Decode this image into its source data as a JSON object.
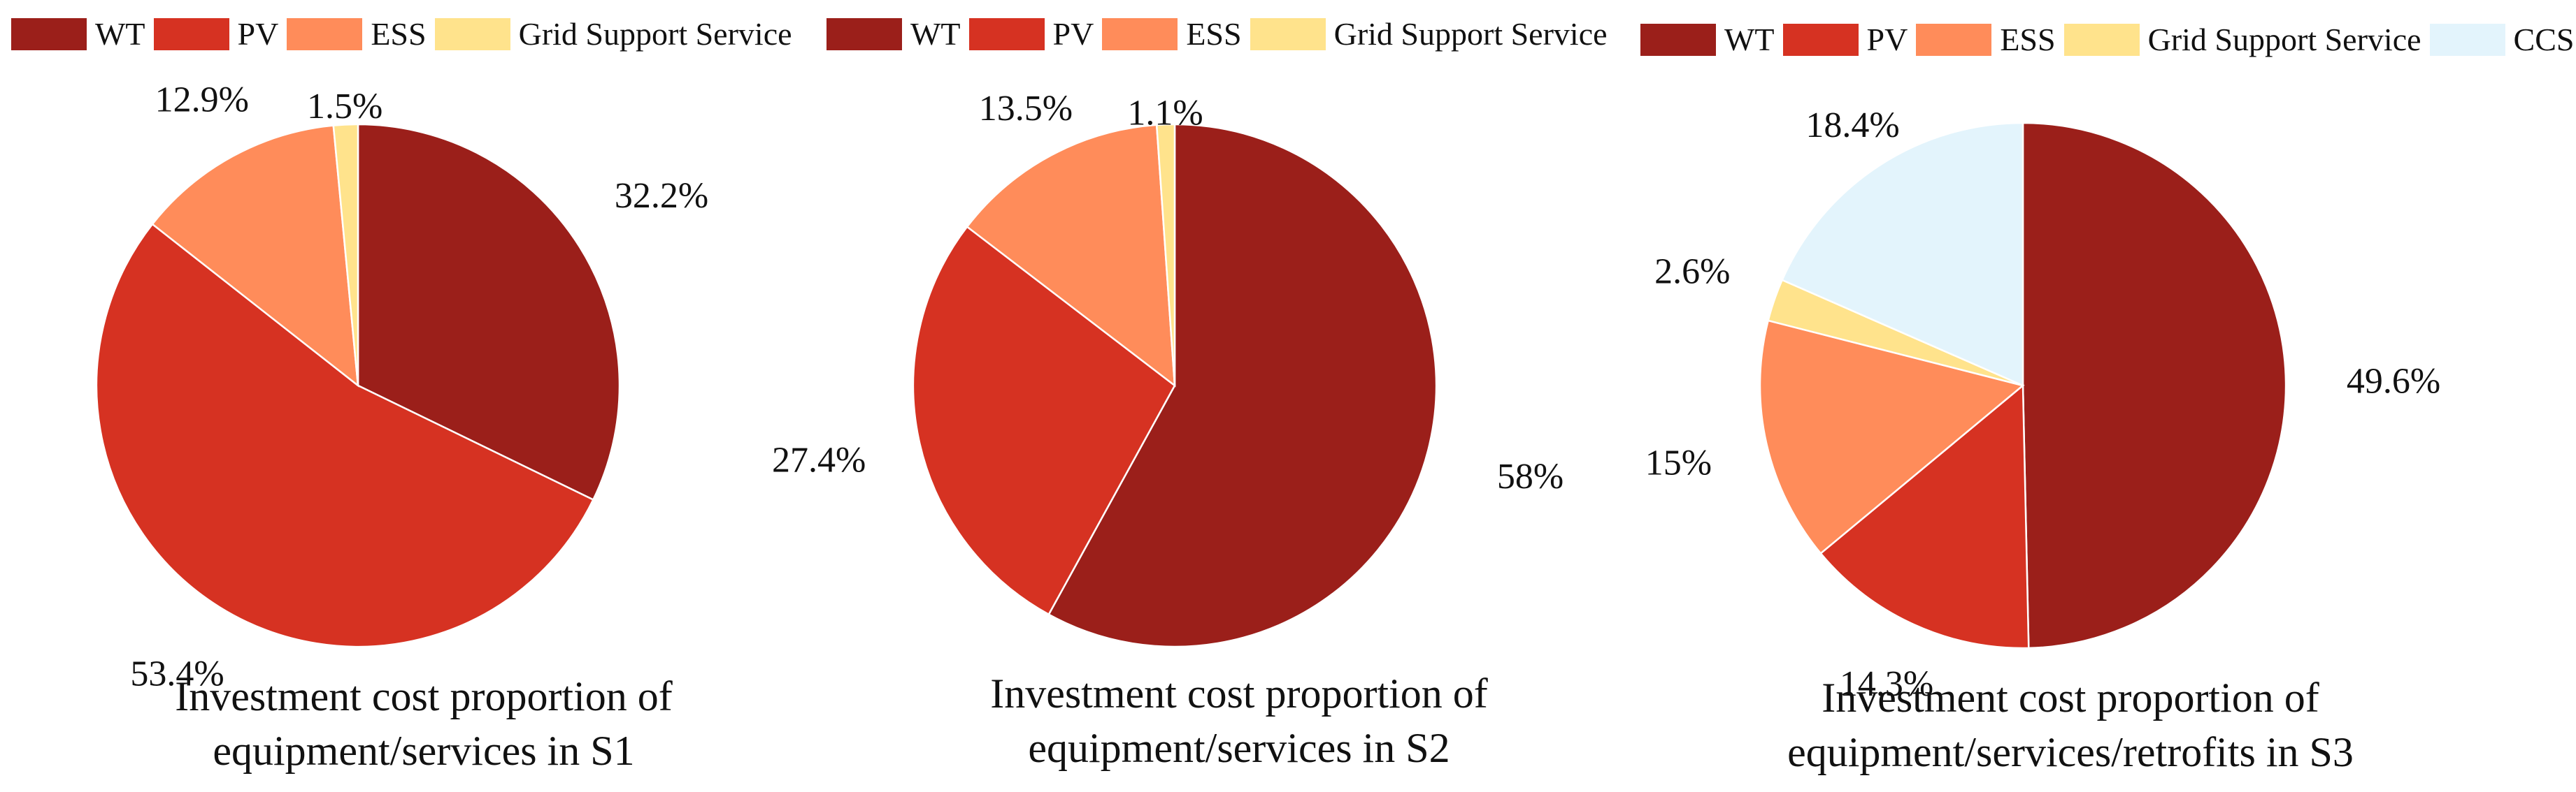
{
  "chart_data": [
    {
      "type": "pie",
      "title": "Investment cost proportion of equipment/services in S1",
      "title_lines": [
        "Investment cost proportion of",
        "equipment/services in S1"
      ],
      "legend": [
        "WT",
        "PV",
        "ESS",
        "Grid Support Service"
      ],
      "legend_position": "top",
      "slices": [
        {
          "label": "WT",
          "value": 32.2,
          "text": "32.2%",
          "color": "#9B1F1A"
        },
        {
          "label": "PV",
          "value": 53.4,
          "text": "53.4%",
          "color": "#D63222"
        },
        {
          "label": "ESS",
          "value": 12.9,
          "text": "12.9%",
          "color": "#FF8C5A"
        },
        {
          "label": "Grid Support Service",
          "value": 1.5,
          "text": "1.5%",
          "color": "#FFE38C"
        }
      ]
    },
    {
      "type": "pie",
      "title": "Investment cost proportion of equipment/services in S2",
      "title_lines": [
        "Investment cost proportion of",
        "equipment/services in S2"
      ],
      "legend": [
        "WT",
        "PV",
        "ESS",
        "Grid Support Service"
      ],
      "legend_position": "top",
      "slices": [
        {
          "label": "WT",
          "value": 58,
          "text": "58%",
          "color": "#9B1F1A"
        },
        {
          "label": "PV",
          "value": 27.4,
          "text": "27.4%",
          "color": "#D63222"
        },
        {
          "label": "ESS",
          "value": 13.5,
          "text": "13.5%",
          "color": "#FF8C5A"
        },
        {
          "label": "Grid Support Service",
          "value": 1.1,
          "text": "1.1%",
          "color": "#FFE38C"
        }
      ]
    },
    {
      "type": "pie",
      "title": "Investment cost proportion of equipment/services/retrofits in S3",
      "title_lines": [
        "Investment cost proportion of",
        "equipment/services/retrofits in S3"
      ],
      "legend": [
        "WT",
        "PV",
        "ESS",
        "Grid Support Service",
        "CCS"
      ],
      "legend_position": "top",
      "slices": [
        {
          "label": "WT",
          "value": 49.6,
          "text": "49.6%",
          "color": "#9B1F1A"
        },
        {
          "label": "PV",
          "value": 14.3,
          "text": "14.3%",
          "color": "#D63222"
        },
        {
          "label": "ESS",
          "value": 15,
          "text": "15%",
          "color": "#FF8C5A"
        },
        {
          "label": "Grid Support Service",
          "value": 2.6,
          "text": "2.6%",
          "color": "#FFE38C"
        },
        {
          "label": "CCS",
          "value": 18.4,
          "text": "18.4%",
          "color": "#E3F4FC"
        }
      ]
    }
  ]
}
